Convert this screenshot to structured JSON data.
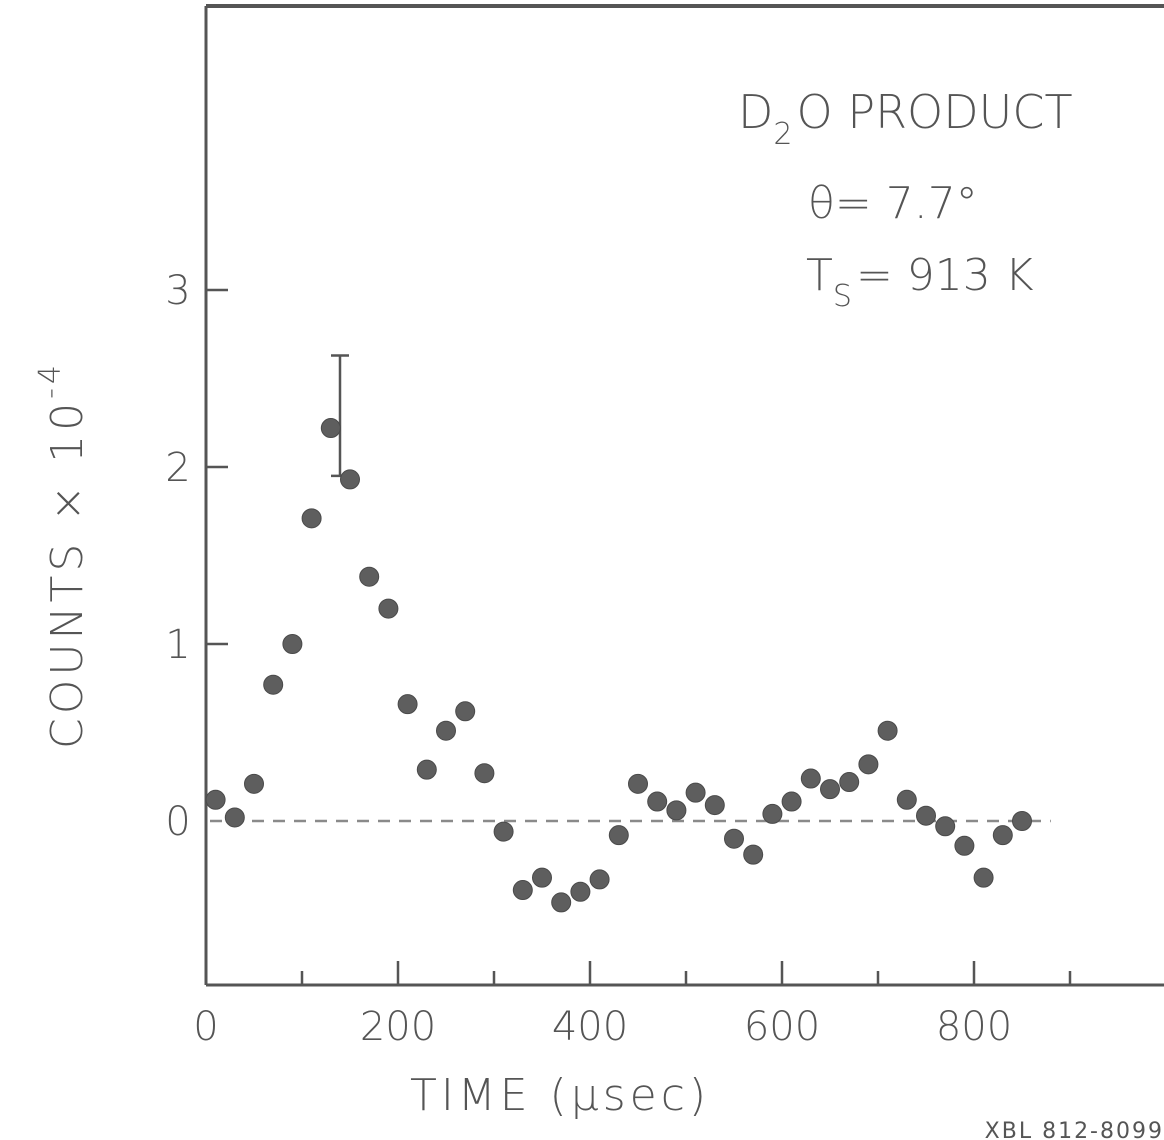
{
  "chart_data": {
    "type": "scatter",
    "title": "",
    "annotations": {
      "line1_main": "D",
      "line1_sub": "2",
      "line1_rest": "O  PRODUCT",
      "line2": "θ= 7.7°",
      "line3_main": "T",
      "line3_sub": "S",
      "line3_rest": "= 913 K"
    },
    "xlabel": "TIME  (µsec)",
    "ylabel": "COUNTS × 10",
    "ylabel_exp": "-4",
    "figure_code": "XBL  812-8099",
    "xlim": [
      0,
      1000
    ],
    "ylim": [
      -0.9,
      4.6
    ],
    "x_ticks": [
      0,
      200,
      400,
      600,
      800
    ],
    "x_tick_labels": [
      "0",
      "200",
      "400",
      "600",
      "800"
    ],
    "x_minor_ticks": [
      100,
      300,
      500,
      700,
      900
    ],
    "y_ticks": [
      0,
      1,
      2,
      3
    ],
    "y_tick_labels": [
      "0",
      "1",
      "2",
      "3"
    ],
    "baseline": 0,
    "grid": false,
    "series": [
      {
        "x": [
          10,
          30,
          50,
          70,
          90,
          110,
          130,
          150,
          170,
          190,
          210,
          230,
          250,
          270,
          290,
          310,
          330,
          350,
          370,
          390,
          410,
          430,
          450,
          470,
          490,
          510,
          530,
          550,
          570,
          590,
          610,
          630,
          650,
          670,
          690,
          710,
          730,
          750,
          770,
          790,
          810,
          830,
          850
        ],
        "y": [
          0.12,
          0.02,
          0.21,
          0.77,
          1.0,
          1.71,
          2.22,
          1.93,
          1.38,
          1.2,
          0.66,
          0.29,
          0.51,
          0.62,
          0.27,
          -0.06,
          -0.39,
          -0.32,
          -0.46,
          -0.4,
          -0.33,
          -0.08,
          0.21,
          0.11,
          0.06,
          0.16,
          0.09,
          -0.1,
          -0.19,
          0.04,
          0.11,
          0.24,
          0.18,
          0.22,
          0.32,
          0.51,
          0.12,
          0.03,
          -0.03,
          -0.14,
          -0.32,
          -0.08,
          0.0
        ]
      }
    ],
    "error_bar": {
      "x": 150,
      "low": 1.95,
      "high": 2.63
    },
    "colors": {
      "ink": "#555555",
      "point": "#5e5e5e"
    }
  }
}
